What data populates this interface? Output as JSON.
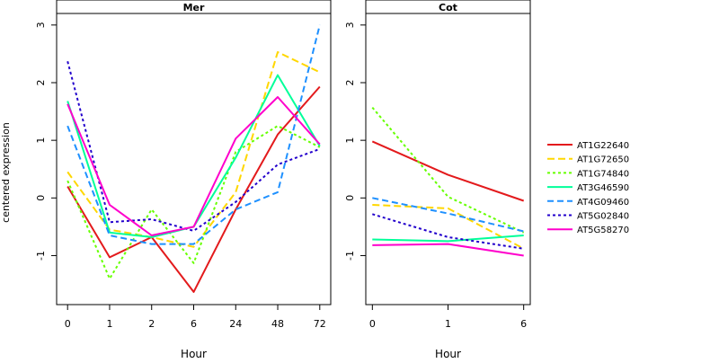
{
  "chart_data": {
    "type": "line",
    "ylabel": "centered expression",
    "legend": {
      "position": "right",
      "entries": [
        {
          "name": "AT1G22640",
          "color": "#e31a1c",
          "dash": "solid"
        },
        {
          "name": "AT1G72650",
          "color": "#ffd700",
          "dash": "longdash"
        },
        {
          "name": "AT1G74840",
          "color": "#66ff00",
          "dash": "dotted"
        },
        {
          "name": "AT3G46590",
          "color": "#00ff99",
          "dash": "solid"
        },
        {
          "name": "AT4G09460",
          "color": "#1e90ff",
          "dash": "dashed"
        },
        {
          "name": "AT5G02840",
          "color": "#2200cc",
          "dash": "dotted"
        },
        {
          "name": "AT5G58270",
          "color": "#ff00cc",
          "dash": "solid"
        }
      ]
    },
    "panels": [
      {
        "title": "Mer",
        "xlabel": "Hour",
        "categories": [
          "0",
          "1",
          "2",
          "6",
          "24",
          "48",
          "72"
        ],
        "ylim": [
          -1.85,
          3.2
        ],
        "yticks": [
          -1,
          0,
          1,
          2,
          3
        ],
        "series": [
          {
            "name": "AT1G22640",
            "values": [
              0.2,
              -1.03,
              -0.68,
              -1.63,
              -0.2,
              1.1,
              1.93
            ]
          },
          {
            "name": "AT1G72650",
            "values": [
              0.45,
              -0.55,
              -0.68,
              -0.85,
              0.1,
              2.53,
              2.18
            ]
          },
          {
            "name": "AT1G74840",
            "values": [
              0.3,
              -1.4,
              -0.2,
              -1.13,
              0.8,
              1.25,
              0.88
            ]
          },
          {
            "name": "AT3G46590",
            "values": [
              1.68,
              -0.6,
              -0.68,
              -0.5,
              0.7,
              2.13,
              0.9
            ]
          },
          {
            "name": "AT4G09460",
            "values": [
              1.25,
              -0.65,
              -0.8,
              -0.8,
              -0.2,
              0.1,
              3.0
            ]
          },
          {
            "name": "AT5G02840",
            "values": [
              2.37,
              -0.42,
              -0.37,
              -0.57,
              -0.07,
              0.58,
              0.85
            ]
          },
          {
            "name": "AT5G58270",
            "values": [
              1.63,
              -0.12,
              -0.65,
              -0.5,
              1.03,
              1.75,
              0.93
            ]
          }
        ]
      },
      {
        "title": "Cot",
        "xlabel": "Hour",
        "categories": [
          "0",
          "1",
          "6"
        ],
        "ylim": [
          -1.85,
          3.2
        ],
        "yticks": [
          -1,
          0,
          1,
          2,
          3
        ],
        "series": [
          {
            "name": "AT1G22640",
            "values": [
              0.98,
              0.4,
              -0.05
            ]
          },
          {
            "name": "AT1G72650",
            "values": [
              -0.12,
              -0.18,
              -0.88
            ]
          },
          {
            "name": "AT1G74840",
            "values": [
              1.57,
              0.02,
              -0.6
            ]
          },
          {
            "name": "AT3G46590",
            "values": [
              -0.72,
              -0.75,
              -0.65
            ]
          },
          {
            "name": "AT4G09460",
            "values": [
              0.0,
              -0.27,
              -0.58
            ]
          },
          {
            "name": "AT5G02840",
            "values": [
              -0.28,
              -0.68,
              -0.88
            ]
          },
          {
            "name": "AT5G58270",
            "values": [
              -0.82,
              -0.8,
              -1.0
            ]
          }
        ]
      }
    ]
  }
}
